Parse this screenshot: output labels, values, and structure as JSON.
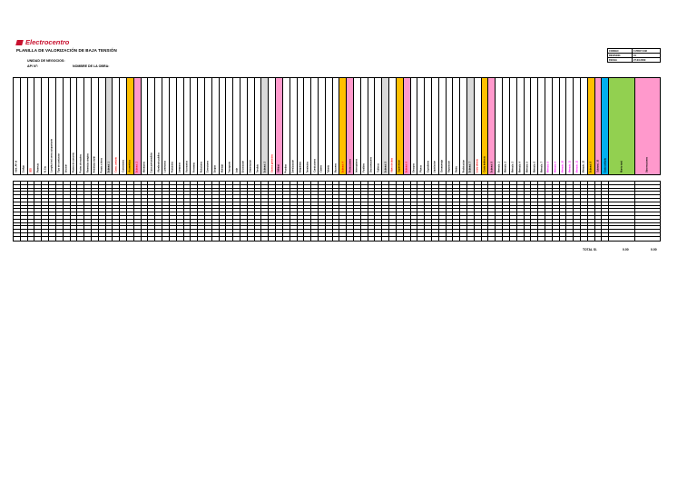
{
  "header": {
    "brand": "Electrocentro",
    "title": "PLANILLA DE VALORIZACIÓN DE BAJA TENSIÓN",
    "unit_label": "UNIDAD DE NEGOCIOS:",
    "ap_label": "AP/ N°:",
    "work_label": "NOMBRE DE LA OBRA:"
  },
  "meta": [
    {
      "k": "CODIGO",
      "v": "F-PROY-048"
    },
    {
      "k": "REVISION",
      "v": "01"
    },
    {
      "k": "FECHA",
      "v": "27-03-2009"
    }
  ],
  "columns": [
    {
      "label": "Item_AP_N",
      "color": "#ffffff",
      "tc": "#000000"
    },
    {
      "label": "Codigo",
      "color": "#ffffff",
      "tc": "#000000"
    },
    {
      "label": "SED",
      "color": "#ffffff",
      "tc": "#ff0000"
    },
    {
      "label": "Potencia",
      "color": "#ffffff",
      "tc": "#000000"
    },
    {
      "label": "N_Cto",
      "color": "#ffffff",
      "tc": "#000000"
    },
    {
      "label": "Longitud red aerea autoportante",
      "color": "#ffffff",
      "tc": "#000000"
    },
    {
      "label": "Tipo de conductor",
      "color": "#ffffff",
      "tc": "#000000"
    },
    {
      "label": "Seccion",
      "color": "#ffffff",
      "tc": "#000000"
    },
    {
      "label": "Postes de concreto",
      "color": "#ffffff",
      "tc": "#000000"
    },
    {
      "label": "Postes de madera",
      "color": "#ffffff",
      "tc": "#000000"
    },
    {
      "label": "Retenidas simples",
      "color": "#ffffff",
      "tc": "#000000"
    },
    {
      "label": "Retenidas violin",
      "color": "#ffffff",
      "tc": "#000000"
    },
    {
      "label": "Puesta a tierra",
      "color": "#ffffff",
      "tc": "#000000"
    },
    {
      "label": "Subtotal_1",
      "color": "#d9d9d9",
      "tc": "#000000"
    },
    {
      "label": "Costo_unitario",
      "color": "#ffffff",
      "tc": "#ff0000"
    },
    {
      "label": "Conexiones",
      "color": "#ffffff",
      "tc": "#000000"
    },
    {
      "label": "Acometidas",
      "color": "#ffc000",
      "tc": "#000000"
    },
    {
      "label": "Subtotal_2",
      "color": "#ff99cc",
      "tc": "#ff0000"
    },
    {
      "label": "Medidores",
      "color": "#ffffff",
      "tc": "#000000"
    },
    {
      "label": "Cajas portamedidor",
      "color": "#ffffff",
      "tc": "#000000"
    },
    {
      "label": "Alumbrado publico",
      "color": "#ffffff",
      "tc": "#000000"
    },
    {
      "label": "Luminarias",
      "color": "#ffffff",
      "tc": "#000000"
    },
    {
      "label": "Pastorales",
      "color": "#ffffff",
      "tc": "#000000"
    },
    {
      "label": "Lamparas",
      "color": "#ffffff",
      "tc": "#000000"
    },
    {
      "label": "Accesorios",
      "color": "#ffffff",
      "tc": "#000000"
    },
    {
      "label": "Ferreteria",
      "color": "#ffffff",
      "tc": "#000000"
    },
    {
      "label": "Aisladores",
      "color": "#ffffff",
      "tc": "#000000"
    },
    {
      "label": "Conectores",
      "color": "#ffffff",
      "tc": "#000000"
    },
    {
      "label": "Grapas",
      "color": "#ffffff",
      "tc": "#000000"
    },
    {
      "label": "Montaje",
      "color": "#ffffff",
      "tc": "#000000"
    },
    {
      "label": "Transporte",
      "color": "#ffffff",
      "tc": "#000000"
    },
    {
      "label": "Izaje",
      "color": "#ffffff",
      "tc": "#000000"
    },
    {
      "label": "Excavacion",
      "color": "#ffffff",
      "tc": "#000000"
    },
    {
      "label": "Cimentacion",
      "color": "#ffffff",
      "tc": "#000000"
    },
    {
      "label": "Tendido",
      "color": "#ffffff",
      "tc": "#000000"
    },
    {
      "label": "Subtotal_3",
      "color": "#d9d9d9",
      "tc": "#000000"
    },
    {
      "label": "Gastos generales",
      "color": "#ffffff",
      "tc": "#ff0000"
    },
    {
      "label": "Utilidad",
      "color": "#ff99cc",
      "tc": "#000000"
    },
    {
      "label": "Pruebas",
      "color": "#ffffff",
      "tc": "#000000"
    },
    {
      "label": "Senalizacion",
      "color": "#ffffff",
      "tc": "#000000"
    },
    {
      "label": "Empalmes",
      "color": "#ffffff",
      "tc": "#000000"
    },
    {
      "label": "Terminales",
      "color": "#ffffff",
      "tc": "#000000"
    },
    {
      "label": "Conductores",
      "color": "#ffffff",
      "tc": "#000000"
    },
    {
      "label": "Cables",
      "color": "#ffffff",
      "tc": "#000000"
    },
    {
      "label": "Tuberia",
      "color": "#ffffff",
      "tc": "#000000"
    },
    {
      "label": "Buzones",
      "color": "#ffffff",
      "tc": "#000000"
    },
    {
      "label": "Subtotal_4",
      "color": "#ffc000",
      "tc": "#ff0000"
    },
    {
      "label": "Protecciones",
      "color": "#ff99cc",
      "tc": "#000000"
    },
    {
      "label": "Interruptores",
      "color": "#ffffff",
      "tc": "#000000"
    },
    {
      "label": "Fusibles",
      "color": "#ffffff",
      "tc": "#000000"
    },
    {
      "label": "Seccionadores",
      "color": "#ffffff",
      "tc": "#000000"
    },
    {
      "label": "Tableros",
      "color": "#ffffff",
      "tc": "#000000"
    },
    {
      "label": "Subtotal_5",
      "color": "#d9d9d9",
      "tc": "#000000"
    },
    {
      "label": "Mano de obra",
      "color": "#ffffff",
      "tc": "#ff0000"
    },
    {
      "label": "Supervision",
      "color": "#ffc000",
      "tc": "#000000"
    },
    {
      "label": "Subtotal_6",
      "color": "#ff99cc",
      "tc": "#ff0000"
    },
    {
      "label": "Ensayos",
      "color": "#ffffff",
      "tc": "#000000"
    },
    {
      "label": "Planos",
      "color": "#ffffff",
      "tc": "#000000"
    },
    {
      "label": "Expediente",
      "color": "#ffffff",
      "tc": "#000000"
    },
    {
      "label": "Liquidacion",
      "color": "#ffffff",
      "tc": "#000000"
    },
    {
      "label": "Desmontaje",
      "color": "#ffffff",
      "tc": "#000000"
    },
    {
      "label": "Reposicion",
      "color": "#ffffff",
      "tc": "#000000"
    },
    {
      "label": "Retiro",
      "color": "#ffffff",
      "tc": "#000000"
    },
    {
      "label": "Reubicacion",
      "color": "#ffffff",
      "tc": "#000000"
    },
    {
      "label": "Subtotal_7",
      "color": "#d9d9d9",
      "tc": "#000000"
    },
    {
      "label": "Costo directo",
      "color": "#ffffff",
      "tc": "#ff0000"
    },
    {
      "label": "Costo indirecto",
      "color": "#ffc000",
      "tc": "#000000"
    },
    {
      "label": "Subtotal_8",
      "color": "#ff99cc",
      "tc": "#000000"
    },
    {
      "label": "Metrado_1",
      "color": "#ffffff",
      "tc": "#000000"
    },
    {
      "label": "Metrado_2",
      "color": "#ffffff",
      "tc": "#000000"
    },
    {
      "label": "Metrado_3",
      "color": "#ffffff",
      "tc": "#000000"
    },
    {
      "label": "Metrado_4",
      "color": "#ffffff",
      "tc": "#000000"
    },
    {
      "label": "Metrado_5",
      "color": "#ffffff",
      "tc": "#000000"
    },
    {
      "label": "Metrado_6",
      "color": "#ffffff",
      "tc": "#000000"
    },
    {
      "label": "Metrado_7",
      "color": "#ffffff",
      "tc": "#000000"
    },
    {
      "label": "Metrado_8",
      "color": "#ffffff",
      "tc": "#ff00ff"
    },
    {
      "label": "Metrado_9",
      "color": "#ffffff",
      "tc": "#ff00ff"
    },
    {
      "label": "Metrado_10",
      "color": "#ffffff",
      "tc": "#ff00ff"
    },
    {
      "label": "Metrado_11",
      "color": "#ffffff",
      "tc": "#ff00ff"
    },
    {
      "label": "Metrado_12",
      "color": "#ffffff",
      "tc": "#ff00ff"
    },
    {
      "label": "Metrado_13",
      "color": "#ffffff",
      "tc": "#000000"
    },
    {
      "label": "Subtotal_9",
      "color": "#ffc000",
      "tc": "#000000"
    },
    {
      "label": "Subtotal_10",
      "color": "#ff99cc",
      "tc": "#000000"
    },
    {
      "label": "Costo unitario",
      "color": "#00b0f0",
      "tc": "#000000"
    },
    {
      "label": "Monto total",
      "color": "#92d050",
      "tc": "#000000",
      "w": 4
    },
    {
      "label": "Observaciones",
      "color": "#ff99cc",
      "tc": "#000000",
      "w": 4
    }
  ],
  "grid_rows": 17,
  "totals": {
    "label": "TOTAL S/.",
    "v1": "0.00",
    "v2": "0.00"
  }
}
